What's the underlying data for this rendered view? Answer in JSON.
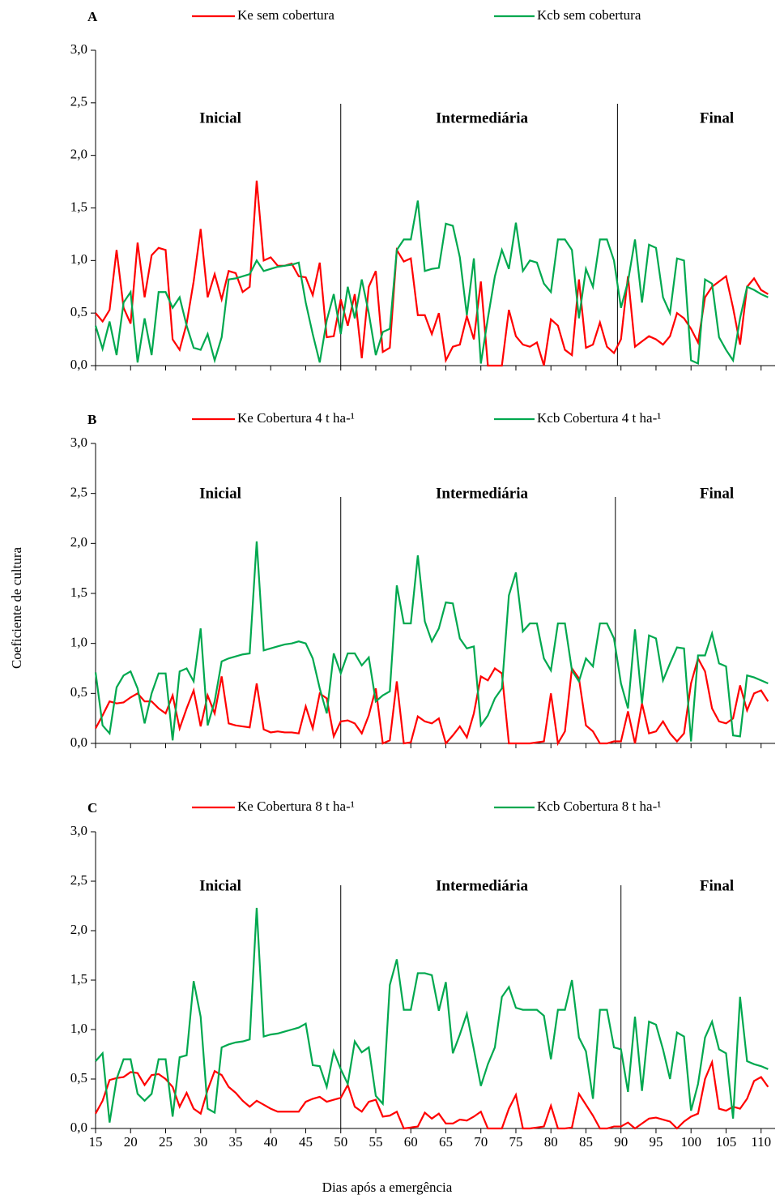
{
  "y_label": "Coeficiente de cultura",
  "x_label": "Dias após a emergência",
  "chart_data": [
    {
      "type": "line",
      "title": "A",
      "legend_position": "top",
      "phases": [
        "Inicial",
        "Intermediária",
        "Final"
      ],
      "phase_boundaries": [
        50,
        89.5
      ],
      "xlim": [
        15,
        112
      ],
      "xticks": [
        15,
        20,
        25,
        30,
        35,
        40,
        45,
        50,
        55,
        60,
        65,
        70,
        75,
        80,
        85,
        90,
        95,
        100,
        105,
        110
      ],
      "xtick_labels": false,
      "ylim": [
        0,
        3
      ],
      "yticks": [
        {
          "value": 0,
          "label": "0,0"
        },
        {
          "value": 0.5,
          "label": "0,5"
        },
        {
          "value": 1,
          "label": "1,0"
        },
        {
          "value": 1.5,
          "label": "1,5"
        },
        {
          "value": 2,
          "label": "2,0"
        },
        {
          "value": 2.5,
          "label": "2,5"
        },
        {
          "value": 3,
          "label": "3,0"
        }
      ],
      "x": [
        15,
        16,
        17,
        18,
        19,
        20,
        21,
        22,
        23,
        24,
        25,
        26,
        27,
        28,
        29,
        30,
        31,
        32,
        33,
        34,
        35,
        36,
        37,
        38,
        39,
        40,
        41,
        42,
        43,
        44,
        45,
        46,
        47,
        48,
        49,
        50,
        51,
        52,
        53,
        54,
        55,
        56,
        57,
        58,
        59,
        60,
        61,
        62,
        63,
        64,
        65,
        66,
        67,
        68,
        69,
        70,
        71,
        72,
        73,
        74,
        75,
        76,
        77,
        78,
        79,
        80,
        81,
        82,
        83,
        84,
        85,
        86,
        87,
        88,
        89,
        90,
        91,
        92,
        93,
        94,
        95,
        96,
        97,
        98,
        99,
        100,
        101,
        102,
        103,
        104,
        105,
        106,
        107,
        108,
        109,
        110,
        111
      ],
      "series": [
        {
          "name": "Ke sem cobertura",
          "color": "#ff0000",
          "values": [
            0.5,
            0.42,
            0.53,
            1.1,
            0.55,
            0.4,
            1.17,
            0.65,
            1.05,
            1.12,
            1.1,
            0.25,
            0.15,
            0.4,
            0.8,
            1.3,
            0.65,
            0.87,
            0.63,
            0.9,
            0.88,
            0.7,
            0.75,
            1.76,
            1.0,
            1.03,
            0.95,
            0.95,
            0.97,
            0.85,
            0.84,
            0.67,
            0.98,
            0.27,
            0.28,
            0.63,
            0.38,
            0.68,
            0.07,
            0.75,
            0.9,
            0.13,
            0.17,
            1.1,
            0.99,
            1.02,
            0.48,
            0.48,
            0.3,
            0.5,
            0.05,
            0.18,
            0.2,
            0.47,
            0.25,
            0.8,
            0.0,
            0.0,
            0.0,
            0.53,
            0.28,
            0.2,
            0.18,
            0.22,
            0.0,
            0.44,
            0.38,
            0.15,
            0.1,
            0.82,
            0.17,
            0.2,
            0.41,
            0.18,
            0.12,
            0.25,
            0.85,
            0.18,
            0.23,
            0.28,
            0.25,
            0.2,
            0.28,
            0.5,
            0.45,
            0.35,
            0.22,
            0.65,
            0.75,
            0.8,
            0.85,
            0.55,
            0.2,
            0.75,
            0.83,
            0.72,
            0.68
          ]
        },
        {
          "name": "Kcb sem cobertura",
          "color": "#00a84f",
          "values": [
            0.38,
            0.16,
            0.42,
            0.1,
            0.6,
            0.7,
            0.03,
            0.45,
            0.1,
            0.7,
            0.7,
            0.55,
            0.65,
            0.38,
            0.17,
            0.15,
            0.3,
            0.05,
            0.27,
            0.82,
            0.83,
            0.85,
            0.87,
            1.0,
            0.9,
            0.92,
            0.94,
            0.95,
            0.96,
            0.98,
            0.6,
            0.3,
            0.03,
            0.43,
            0.68,
            0.3,
            0.75,
            0.45,
            0.82,
            0.5,
            0.1,
            0.32,
            0.35,
            1.1,
            1.2,
            1.2,
            1.57,
            0.9,
            0.92,
            0.93,
            1.35,
            1.33,
            1.03,
            0.48,
            1.02,
            0.02,
            0.45,
            0.85,
            1.1,
            0.92,
            1.36,
            0.9,
            1.0,
            0.98,
            0.78,
            0.7,
            1.2,
            1.2,
            1.1,
            0.45,
            0.92,
            0.75,
            1.2,
            1.2,
            1.0,
            0.55,
            0.8,
            1.2,
            0.6,
            1.15,
            1.12,
            0.65,
            0.5,
            1.02,
            1.0,
            0.05,
            0.02,
            0.82,
            0.78,
            0.27,
            0.15,
            0.05,
            0.45,
            0.75,
            0.72,
            0.68,
            0.65
          ]
        }
      ]
    },
    {
      "type": "line",
      "title": "B",
      "legend_position": "top",
      "phases": [
        "Inicial",
        "Intermediária",
        "Final"
      ],
      "phase_boundaries": [
        50,
        89.2
      ],
      "xlim": [
        15,
        112
      ],
      "xticks": [
        15,
        20,
        25,
        30,
        35,
        40,
        45,
        50,
        55,
        60,
        65,
        70,
        75,
        80,
        85,
        90,
        95,
        100,
        105,
        110
      ],
      "xtick_labels": false,
      "ylim": [
        0,
        3
      ],
      "yticks": [
        {
          "value": 0,
          "label": "0,0"
        },
        {
          "value": 0.5,
          "label": "0,5"
        },
        {
          "value": 1,
          "label": "1,0"
        },
        {
          "value": 1.5,
          "label": "1,5"
        },
        {
          "value": 2,
          "label": "2,0"
        },
        {
          "value": 2.5,
          "label": "2,5"
        },
        {
          "value": 3,
          "label": "3,0"
        }
      ],
      "x": [
        15,
        16,
        17,
        18,
        19,
        20,
        21,
        22,
        23,
        24,
        25,
        26,
        27,
        28,
        29,
        30,
        31,
        32,
        33,
        34,
        35,
        36,
        37,
        38,
        39,
        40,
        41,
        42,
        43,
        44,
        45,
        46,
        47,
        48,
        49,
        50,
        51,
        52,
        53,
        54,
        55,
        56,
        57,
        58,
        59,
        60,
        61,
        62,
        63,
        64,
        65,
        66,
        67,
        68,
        69,
        70,
        71,
        72,
        73,
        74,
        75,
        76,
        77,
        78,
        79,
        80,
        81,
        82,
        83,
        84,
        85,
        86,
        87,
        88,
        89,
        90,
        91,
        92,
        93,
        94,
        95,
        96,
        97,
        98,
        99,
        100,
        101,
        102,
        103,
        104,
        105,
        106,
        107,
        108,
        109,
        110,
        111
      ],
      "series": [
        {
          "name": "Ke Cobertura 4 t ha-¹",
          "color": "#ff0000",
          "values": [
            0.15,
            0.28,
            0.42,
            0.4,
            0.41,
            0.46,
            0.5,
            0.42,
            0.42,
            0.35,
            0.3,
            0.48,
            0.15,
            0.35,
            0.53,
            0.17,
            0.48,
            0.3,
            0.67,
            0.2,
            0.18,
            0.17,
            0.16,
            0.6,
            0.14,
            0.11,
            0.12,
            0.11,
            0.11,
            0.1,
            0.37,
            0.15,
            0.5,
            0.45,
            0.07,
            0.22,
            0.23,
            0.2,
            0.1,
            0.28,
            0.55,
            0.0,
            0.03,
            0.62,
            0.0,
            0.01,
            0.27,
            0.22,
            0.2,
            0.25,
            0.0,
            0.08,
            0.17,
            0.06,
            0.3,
            0.67,
            0.63,
            0.75,
            0.7,
            0.0,
            0.0,
            0.0,
            0.0,
            0.01,
            0.02,
            0.5,
            0.0,
            0.12,
            0.75,
            0.65,
            0.18,
            0.12,
            0.0,
            0.0,
            0.02,
            0.02,
            0.32,
            0.0,
            0.4,
            0.1,
            0.12,
            0.22,
            0.1,
            0.02,
            0.1,
            0.6,
            0.85,
            0.72,
            0.35,
            0.22,
            0.2,
            0.25,
            0.58,
            0.33,
            0.5,
            0.53,
            0.42
          ]
        },
        {
          "name": "Kcb Cobertura 4 t ha-¹",
          "color": "#00a84f",
          "values": [
            0.71,
            0.18,
            0.1,
            0.56,
            0.68,
            0.72,
            0.55,
            0.2,
            0.5,
            0.7,
            0.7,
            0.03,
            0.72,
            0.75,
            0.62,
            1.15,
            0.18,
            0.42,
            0.82,
            0.85,
            0.87,
            0.89,
            0.9,
            2.02,
            0.93,
            0.95,
            0.97,
            0.99,
            1.0,
            1.02,
            1.0,
            0.85,
            0.55,
            0.3,
            0.9,
            0.7,
            0.9,
            0.9,
            0.78,
            0.86,
            0.42,
            0.48,
            0.52,
            1.58,
            1.2,
            1.2,
            1.88,
            1.22,
            1.02,
            1.15,
            1.41,
            1.4,
            1.05,
            0.95,
            0.97,
            0.18,
            0.28,
            0.45,
            0.55,
            1.48,
            1.71,
            1.12,
            1.2,
            1.2,
            0.85,
            0.73,
            1.2,
            1.2,
            0.73,
            0.62,
            0.85,
            0.77,
            1.2,
            1.2,
            1.05,
            0.6,
            0.35,
            1.14,
            0.4,
            1.08,
            1.05,
            0.63,
            0.8,
            0.96,
            0.95,
            0.02,
            0.88,
            0.88,
            1.1,
            0.8,
            0.77,
            0.08,
            0.07,
            0.68,
            0.66,
            0.63,
            0.6
          ]
        }
      ]
    },
    {
      "type": "line",
      "title": "C",
      "legend_position": "top",
      "phases": [
        "Inicial",
        "Intermediária",
        "Final"
      ],
      "phase_boundaries": [
        50,
        90
      ],
      "xlim": [
        15,
        112
      ],
      "xticks": [
        15,
        20,
        25,
        30,
        35,
        40,
        45,
        50,
        55,
        60,
        65,
        70,
        75,
        80,
        85,
        90,
        95,
        100,
        105,
        110
      ],
      "xtick_labels": true,
      "ylim": [
        0,
        3
      ],
      "yticks": [
        {
          "value": 0,
          "label": "0,0"
        },
        {
          "value": 0.5,
          "label": "0,5"
        },
        {
          "value": 1,
          "label": "1,0"
        },
        {
          "value": 1.5,
          "label": "1,5"
        },
        {
          "value": 2,
          "label": "2,0"
        },
        {
          "value": 2.5,
          "label": "2,5"
        },
        {
          "value": 3,
          "label": "3,0"
        }
      ],
      "x": [
        15,
        16,
        17,
        18,
        19,
        20,
        21,
        22,
        23,
        24,
        25,
        26,
        27,
        28,
        29,
        30,
        31,
        32,
        33,
        34,
        35,
        36,
        37,
        38,
        39,
        40,
        41,
        42,
        43,
        44,
        45,
        46,
        47,
        48,
        49,
        50,
        51,
        52,
        53,
        54,
        55,
        56,
        57,
        58,
        59,
        60,
        61,
        62,
        63,
        64,
        65,
        66,
        67,
        68,
        69,
        70,
        71,
        72,
        73,
        74,
        75,
        76,
        77,
        78,
        79,
        80,
        81,
        82,
        83,
        84,
        85,
        86,
        87,
        88,
        89,
        90,
        91,
        92,
        93,
        94,
        95,
        96,
        97,
        98,
        99,
        100,
        101,
        102,
        103,
        104,
        105,
        106,
        107,
        108,
        109,
        110,
        111
      ],
      "series": [
        {
          "name": "Ke Cobertura 8 t ha-¹",
          "color": "#ff0000",
          "values": [
            0.15,
            0.28,
            0.49,
            0.51,
            0.52,
            0.57,
            0.56,
            0.44,
            0.54,
            0.55,
            0.5,
            0.42,
            0.22,
            0.36,
            0.2,
            0.15,
            0.39,
            0.58,
            0.54,
            0.42,
            0.36,
            0.28,
            0.22,
            0.28,
            0.24,
            0.2,
            0.17,
            0.17,
            0.17,
            0.17,
            0.27,
            0.3,
            0.32,
            0.27,
            0.29,
            0.31,
            0.44,
            0.22,
            0.17,
            0.27,
            0.29,
            0.12,
            0.13,
            0.17,
            0.0,
            0.01,
            0.02,
            0.16,
            0.1,
            0.15,
            0.05,
            0.05,
            0.09,
            0.08,
            0.12,
            0.17,
            0.0,
            0.0,
            0.0,
            0.2,
            0.34,
            0.0,
            0.0,
            0.01,
            0.02,
            0.23,
            0.0,
            0.0,
            0.01,
            0.35,
            0.24,
            0.13,
            0.0,
            0.0,
            0.02,
            0.02,
            0.06,
            0.0,
            0.05,
            0.1,
            0.11,
            0.09,
            0.07,
            0.0,
            0.07,
            0.12,
            0.15,
            0.5,
            0.67,
            0.2,
            0.18,
            0.22,
            0.2,
            0.3,
            0.48,
            0.52,
            0.42
          ]
        },
        {
          "name": "Kcb Cobertura 8 t ha-¹",
          "color": "#00a84f",
          "values": [
            0.68,
            0.76,
            0.06,
            0.5,
            0.7,
            0.7,
            0.35,
            0.28,
            0.35,
            0.7,
            0.7,
            0.12,
            0.72,
            0.74,
            1.49,
            1.13,
            0.2,
            0.16,
            0.82,
            0.85,
            0.87,
            0.88,
            0.9,
            2.23,
            0.93,
            0.95,
            0.96,
            0.98,
            1.0,
            1.02,
            1.06,
            0.64,
            0.63,
            0.42,
            0.78,
            0.6,
            0.45,
            0.88,
            0.77,
            0.82,
            0.33,
            0.25,
            1.45,
            1.71,
            1.2,
            1.2,
            1.57,
            1.57,
            1.55,
            1.19,
            1.48,
            0.76,
            0.95,
            1.16,
            0.8,
            0.43,
            0.65,
            0.82,
            1.33,
            1.43,
            1.22,
            1.2,
            1.2,
            1.2,
            1.14,
            0.7,
            1.2,
            1.2,
            1.5,
            0.92,
            0.78,
            0.3,
            1.2,
            1.2,
            0.82,
            0.8,
            0.37,
            1.13,
            0.38,
            1.08,
            1.05,
            0.8,
            0.5,
            0.97,
            0.93,
            0.18,
            0.45,
            0.92,
            1.08,
            0.8,
            0.76,
            0.1,
            1.33,
            0.68,
            0.65,
            0.63,
            0.6
          ]
        }
      ]
    }
  ]
}
